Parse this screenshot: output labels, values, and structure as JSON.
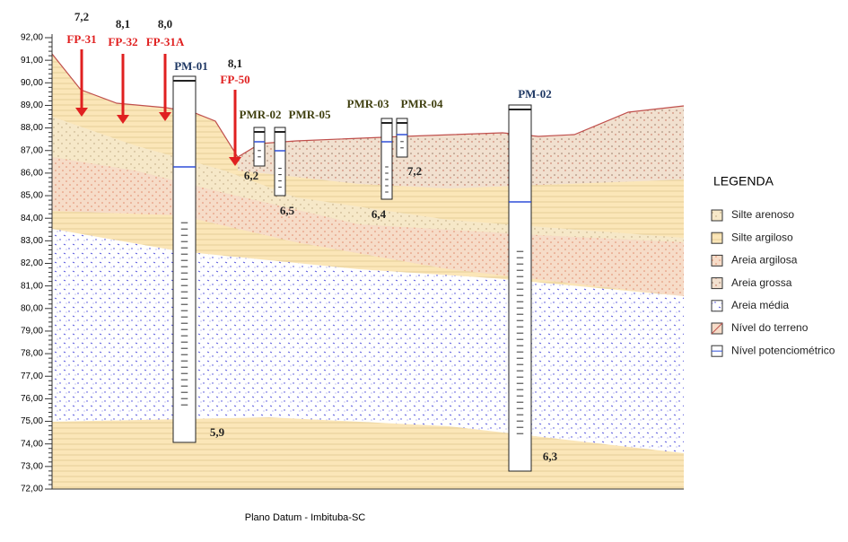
{
  "axis": {
    "ticks": [
      "92,00",
      "91,00",
      "90,00",
      "89,00",
      "88,00",
      "87,00",
      "86,00",
      "85,00",
      "84,00",
      "83,00",
      "82,00",
      "81,00",
      "80,00",
      "79,00",
      "78,00",
      "77,00",
      "76,00",
      "75,00",
      "74,00",
      "73,00",
      "72,00"
    ]
  },
  "arrows": [
    {
      "value": "7,2",
      "label": "FP-31"
    },
    {
      "value": "8,1",
      "label": "FP-32"
    },
    {
      "value": "8,0",
      "label": "FP-31A"
    },
    {
      "value": "8,1",
      "label": "FP-50"
    }
  ],
  "wells": [
    {
      "label": "PM-01",
      "depth": "5,9"
    },
    {
      "label": "PMR-02",
      "depth": "6,2"
    },
    {
      "label": "PMR-05",
      "depth": "6,5"
    },
    {
      "label": "PMR-03",
      "depth": "6,4"
    },
    {
      "label": "PMR-04",
      "depth": "7,2"
    },
    {
      "label": "PM-02",
      "depth": "6,3"
    }
  ],
  "legend": {
    "title": "LEGENDA",
    "items": [
      "Silte arenoso",
      "Silte argiloso",
      "Areia argilosa",
      "Areia grossa",
      "Areia média",
      "Nível do terreno",
      "Nível potenciométrico"
    ]
  },
  "footer": "Plano Datum - Imbituba-SC"
}
